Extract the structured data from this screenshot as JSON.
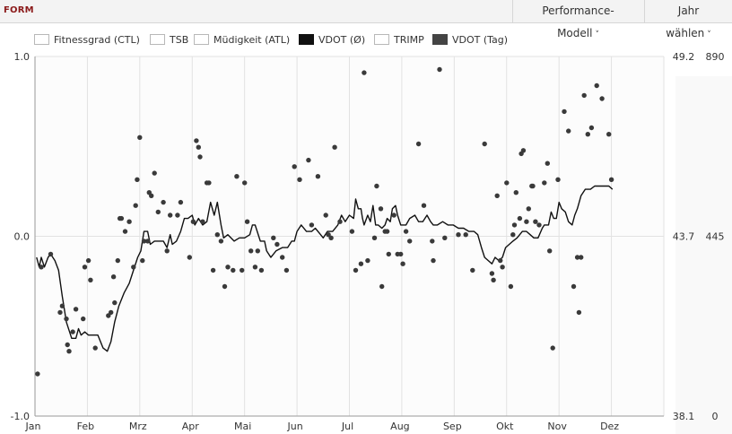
{
  "header": {
    "title": "FORM",
    "performance_model_label": "Performance-Modell",
    "year_select_label": "Jahr wählen",
    "chevron": "˅"
  },
  "legend": [
    {
      "label": "Fitnessgrad (CTL)",
      "color": "#ffffff"
    },
    {
      "label": "TSB",
      "color": "#ffffff"
    },
    {
      "label": "Müdigkeit (ATL)",
      "color": "#ffffff"
    },
    {
      "label": "VDOT (Ø)",
      "color": "#111111"
    },
    {
      "label": "TRIMP",
      "color": "#ffffff"
    },
    {
      "label": "VDOT (Tag)",
      "color": "#444444"
    }
  ],
  "colors": {
    "line": "#111111",
    "dots": "#3a3a3a",
    "grid": "#e2e2e2",
    "plot_bg": "#fcfcfc",
    "axis": "#999999",
    "brand": "#8b1a1a"
  },
  "chart_data": {
    "type": "line",
    "x_labels": [
      "Jan",
      "Feb",
      "Mrz",
      "Apr",
      "Mai",
      "Jun",
      "Jul",
      "Aug",
      "Sep",
      "Okt",
      "Nov",
      "Dez"
    ],
    "x_range": [
      0,
      12
    ],
    "y_left": {
      "ticks": [
        "1.0",
        "0.0",
        "-1.0"
      ],
      "range": [
        -1.0,
        1.0
      ]
    },
    "y_right1": {
      "ticks": [
        "49.2",
        "43.7",
        "38.1"
      ],
      "range": [
        38.1,
        49.2
      ]
    },
    "y_right2": {
      "ticks": [
        "890",
        "445",
        "0"
      ],
      "range": [
        0,
        890
      ]
    },
    "grid": true,
    "series": [
      {
        "name": "VDOT (Ø)",
        "kind": "line",
        "axis": "y_right1",
        "points": [
          [
            0.03,
            43.0
          ],
          [
            0.08,
            42.7
          ],
          [
            0.12,
            43.0
          ],
          [
            0.18,
            42.7
          ],
          [
            0.25,
            43.0
          ],
          [
            0.3,
            43.1
          ],
          [
            0.38,
            42.9
          ],
          [
            0.45,
            42.6
          ],
          [
            0.52,
            41.8
          ],
          [
            0.6,
            41.0
          ],
          [
            0.7,
            40.5
          ],
          [
            0.78,
            40.5
          ],
          [
            0.83,
            40.8
          ],
          [
            0.88,
            40.6
          ],
          [
            0.95,
            40.7
          ],
          [
            1.02,
            40.6
          ],
          [
            1.12,
            40.6
          ],
          [
            1.2,
            40.6
          ],
          [
            1.3,
            40.2
          ],
          [
            1.38,
            40.1
          ],
          [
            1.45,
            40.4
          ],
          [
            1.52,
            41.0
          ],
          [
            1.6,
            41.5
          ],
          [
            1.7,
            41.9
          ],
          [
            1.8,
            42.2
          ],
          [
            1.88,
            42.6
          ],
          [
            1.96,
            43.0
          ],
          [
            2.02,
            43.2
          ],
          [
            2.08,
            43.8
          ],
          [
            2.15,
            43.8
          ],
          [
            2.2,
            43.4
          ],
          [
            2.28,
            43.5
          ],
          [
            2.38,
            43.5
          ],
          [
            2.45,
            43.5
          ],
          [
            2.52,
            43.3
          ],
          [
            2.58,
            43.7
          ],
          [
            2.62,
            43.4
          ],
          [
            2.7,
            43.5
          ],
          [
            2.78,
            43.8
          ],
          [
            2.85,
            44.2
          ],
          [
            2.92,
            44.2
          ],
          [
            3.0,
            44.3
          ],
          [
            3.05,
            44.0
          ],
          [
            3.12,
            44.2
          ],
          [
            3.2,
            44.0
          ],
          [
            3.28,
            44.1
          ],
          [
            3.35,
            44.7
          ],
          [
            3.42,
            44.3
          ],
          [
            3.48,
            44.7
          ],
          [
            3.55,
            44.0
          ],
          [
            3.6,
            43.6
          ],
          [
            3.68,
            43.7
          ],
          [
            3.8,
            43.5
          ],
          [
            3.9,
            43.6
          ],
          [
            4.0,
            43.6
          ],
          [
            4.1,
            43.7
          ],
          [
            4.15,
            44.0
          ],
          [
            4.2,
            44.0
          ],
          [
            4.3,
            43.5
          ],
          [
            4.38,
            43.5
          ],
          [
            4.42,
            43.2
          ],
          [
            4.5,
            43.0
          ],
          [
            4.55,
            43.1
          ],
          [
            4.6,
            43.2
          ],
          [
            4.72,
            43.3
          ],
          [
            4.82,
            43.3
          ],
          [
            4.9,
            43.5
          ],
          [
            4.95,
            43.5
          ],
          [
            5.0,
            43.8
          ],
          [
            5.08,
            44.0
          ],
          [
            5.18,
            43.8
          ],
          [
            5.28,
            43.8
          ],
          [
            5.35,
            43.9
          ],
          [
            5.45,
            43.7
          ],
          [
            5.5,
            43.6
          ],
          [
            5.58,
            43.8
          ],
          [
            5.68,
            43.8
          ],
          [
            5.78,
            44.0
          ],
          [
            5.85,
            44.3
          ],
          [
            5.92,
            44.1
          ],
          [
            6.0,
            44.3
          ],
          [
            6.08,
            44.2
          ],
          [
            6.12,
            44.8
          ],
          [
            6.17,
            44.5
          ],
          [
            6.22,
            44.5
          ],
          [
            6.25,
            44.2
          ],
          [
            6.28,
            44.0
          ],
          [
            6.35,
            44.3
          ],
          [
            6.4,
            44.1
          ],
          [
            6.45,
            44.6
          ],
          [
            6.5,
            44.0
          ],
          [
            6.55,
            44.0
          ],
          [
            6.62,
            43.9
          ],
          [
            6.68,
            44.0
          ],
          [
            6.72,
            44.2
          ],
          [
            6.78,
            44.1
          ],
          [
            6.82,
            44.5
          ],
          [
            6.88,
            44.6
          ],
          [
            6.92,
            44.3
          ],
          [
            6.98,
            44.0
          ],
          [
            7.08,
            44.0
          ],
          [
            7.15,
            44.2
          ],
          [
            7.25,
            44.3
          ],
          [
            7.32,
            44.1
          ],
          [
            7.4,
            44.1
          ],
          [
            7.48,
            44.3
          ],
          [
            7.55,
            44.1
          ],
          [
            7.6,
            44.0
          ],
          [
            7.68,
            44.0
          ],
          [
            7.78,
            44.1
          ],
          [
            7.88,
            44.0
          ],
          [
            7.98,
            44.0
          ],
          [
            8.08,
            43.9
          ],
          [
            8.18,
            43.9
          ],
          [
            8.28,
            43.8
          ],
          [
            8.38,
            43.8
          ],
          [
            8.45,
            43.7
          ],
          [
            8.52,
            43.3
          ],
          [
            8.58,
            43.0
          ],
          [
            8.65,
            42.9
          ],
          [
            8.72,
            42.8
          ],
          [
            8.78,
            43.0
          ],
          [
            8.85,
            42.9
          ],
          [
            8.92,
            43.0
          ],
          [
            8.98,
            43.3
          ],
          [
            9.05,
            43.4
          ],
          [
            9.12,
            43.5
          ],
          [
            9.2,
            43.6
          ],
          [
            9.3,
            43.8
          ],
          [
            9.38,
            43.8
          ],
          [
            9.45,
            43.7
          ],
          [
            9.52,
            43.6
          ],
          [
            9.6,
            43.6
          ],
          [
            9.68,
            43.9
          ],
          [
            9.72,
            44.0
          ],
          [
            9.8,
            44.0
          ],
          [
            9.85,
            44.4
          ],
          [
            9.9,
            44.2
          ],
          [
            9.95,
            44.2
          ],
          [
            10.0,
            44.7
          ],
          [
            10.05,
            44.5
          ],
          [
            10.12,
            44.4
          ],
          [
            10.18,
            44.1
          ],
          [
            10.25,
            44.0
          ],
          [
            10.3,
            44.3
          ],
          [
            10.35,
            44.5
          ],
          [
            10.42,
            44.9
          ],
          [
            10.5,
            45.1
          ],
          [
            10.6,
            45.1
          ],
          [
            10.68,
            45.2
          ],
          [
            10.78,
            45.2
          ],
          [
            10.88,
            45.2
          ],
          [
            10.95,
            45.2
          ],
          [
            11.02,
            45.1
          ]
        ]
      },
      {
        "name": "VDOT (Tag)",
        "kind": "scatter",
        "axis": "y_right1",
        "points": [
          [
            0.05,
            39.4
          ],
          [
            0.12,
            42.7
          ],
          [
            0.3,
            43.1
          ],
          [
            0.48,
            41.3
          ],
          [
            0.52,
            41.5
          ],
          [
            0.6,
            41.1
          ],
          [
            0.62,
            40.3
          ],
          [
            0.65,
            40.1
          ],
          [
            0.72,
            40.7
          ],
          [
            0.78,
            41.4
          ],
          [
            0.92,
            41.1
          ],
          [
            0.95,
            42.7
          ],
          [
            1.02,
            42.9
          ],
          [
            1.06,
            42.3
          ],
          [
            1.15,
            40.2
          ],
          [
            1.4,
            41.2
          ],
          [
            1.45,
            41.3
          ],
          [
            1.52,
            41.6
          ],
          [
            1.5,
            42.4
          ],
          [
            1.58,
            42.9
          ],
          [
            1.62,
            44.2
          ],
          [
            1.65,
            44.2
          ],
          [
            1.72,
            43.8
          ],
          [
            1.8,
            44.1
          ],
          [
            1.88,
            42.7
          ],
          [
            1.92,
            44.6
          ],
          [
            1.95,
            45.4
          ],
          [
            2.0,
            46.7
          ],
          [
            2.05,
            42.9
          ],
          [
            2.08,
            43.5
          ],
          [
            2.15,
            43.5
          ],
          [
            2.18,
            45.0
          ],
          [
            2.22,
            44.9
          ],
          [
            2.28,
            45.6
          ],
          [
            2.35,
            44.4
          ],
          [
            2.45,
            44.7
          ],
          [
            2.52,
            43.2
          ],
          [
            2.58,
            44.3
          ],
          [
            2.72,
            44.3
          ],
          [
            2.78,
            44.7
          ],
          [
            2.95,
            43.0
          ],
          [
            3.02,
            44.1
          ],
          [
            3.08,
            46.6
          ],
          [
            3.12,
            46.4
          ],
          [
            3.15,
            46.1
          ],
          [
            3.2,
            44.1
          ],
          [
            3.28,
            45.3
          ],
          [
            3.32,
            45.3
          ],
          [
            3.4,
            42.6
          ],
          [
            3.48,
            43.7
          ],
          [
            3.55,
            43.5
          ],
          [
            3.62,
            42.1
          ],
          [
            3.68,
            42.7
          ],
          [
            3.78,
            42.6
          ],
          [
            3.85,
            45.5
          ],
          [
            3.95,
            42.6
          ],
          [
            4.0,
            45.3
          ],
          [
            4.05,
            44.1
          ],
          [
            4.12,
            43.2
          ],
          [
            4.2,
            42.7
          ],
          [
            4.25,
            43.2
          ],
          [
            4.32,
            42.6
          ],
          [
            4.55,
            43.6
          ],
          [
            4.62,
            43.4
          ],
          [
            4.72,
            43.0
          ],
          [
            4.8,
            42.6
          ],
          [
            4.95,
            45.8
          ],
          [
            5.05,
            45.4
          ],
          [
            5.22,
            46.0
          ],
          [
            5.28,
            44.0
          ],
          [
            5.4,
            45.5
          ],
          [
            5.55,
            44.3
          ],
          [
            5.6,
            43.7
          ],
          [
            5.65,
            43.6
          ],
          [
            5.72,
            46.4
          ],
          [
            5.82,
            44.1
          ],
          [
            6.05,
            43.8
          ],
          [
            6.12,
            42.6
          ],
          [
            6.22,
            42.8
          ],
          [
            6.28,
            48.7
          ],
          [
            6.35,
            42.9
          ],
          [
            6.48,
            43.6
          ],
          [
            6.52,
            45.2
          ],
          [
            6.6,
            44.5
          ],
          [
            6.62,
            42.1
          ],
          [
            6.68,
            43.8
          ],
          [
            6.72,
            43.8
          ],
          [
            6.75,
            43.1
          ],
          [
            6.85,
            44.3
          ],
          [
            6.92,
            43.1
          ],
          [
            6.98,
            43.1
          ],
          [
            7.02,
            42.8
          ],
          [
            7.08,
            43.8
          ],
          [
            7.15,
            43.5
          ],
          [
            7.32,
            46.5
          ],
          [
            7.42,
            44.6
          ],
          [
            7.58,
            43.5
          ],
          [
            7.6,
            42.9
          ],
          [
            7.72,
            48.8
          ],
          [
            7.82,
            43.6
          ],
          [
            8.08,
            43.7
          ],
          [
            8.22,
            43.7
          ],
          [
            8.35,
            42.6
          ],
          [
            8.58,
            46.5
          ],
          [
            8.72,
            42.5
          ],
          [
            8.75,
            42.3
          ],
          [
            8.82,
            44.9
          ],
          [
            8.88,
            42.9
          ],
          [
            8.92,
            42.7
          ],
          [
            9.0,
            45.3
          ],
          [
            9.08,
            42.1
          ],
          [
            9.12,
            43.7
          ],
          [
            9.15,
            44.0
          ],
          [
            9.18,
            45.0
          ],
          [
            9.25,
            44.2
          ],
          [
            9.28,
            46.2
          ],
          [
            9.32,
            46.3
          ],
          [
            9.38,
            44.1
          ],
          [
            9.42,
            44.5
          ],
          [
            9.48,
            45.2
          ],
          [
            9.5,
            45.2
          ],
          [
            9.55,
            44.1
          ],
          [
            9.62,
            44.0
          ],
          [
            9.72,
            45.3
          ],
          [
            9.78,
            45.9
          ],
          [
            9.82,
            43.2
          ],
          [
            9.88,
            40.2
          ],
          [
            9.98,
            45.4
          ],
          [
            10.1,
            47.5
          ],
          [
            10.18,
            46.9
          ],
          [
            10.28,
            42.1
          ],
          [
            10.35,
            43.0
          ],
          [
            10.38,
            41.3
          ],
          [
            10.42,
            43.0
          ],
          [
            10.48,
            48.0
          ],
          [
            10.55,
            46.8
          ],
          [
            10.62,
            47.0
          ],
          [
            10.72,
            48.3
          ],
          [
            10.82,
            47.9
          ],
          [
            10.95,
            46.8
          ],
          [
            11.0,
            45.4
          ]
        ]
      }
    ]
  }
}
